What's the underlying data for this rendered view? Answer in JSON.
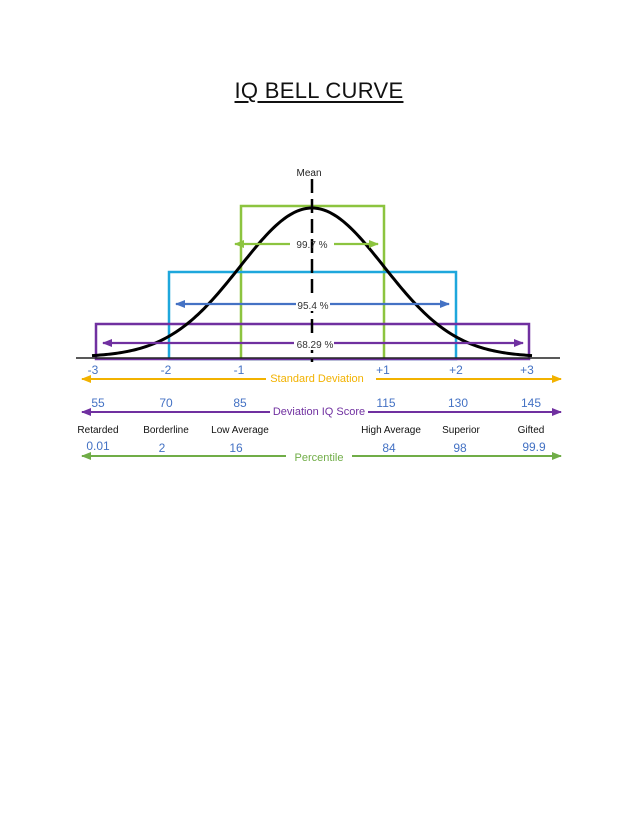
{
  "title": "IQ BELL CURVE",
  "mean_label": "Mean",
  "coverage": {
    "inner": "99.7 %",
    "middle": "95.4 %",
    "outer": "68.29 %"
  },
  "sd": {
    "caption": "Standard Deviation",
    "labels": [
      "-3",
      "-2",
      "-1",
      "+1",
      "+2",
      "+3"
    ]
  },
  "iq": {
    "caption": "Deviation IQ Score",
    "labels": [
      "55",
      "70",
      "85",
      "115",
      "130",
      "145"
    ]
  },
  "classes": {
    "labels": [
      "Retarded",
      "Borderline",
      "Low Average",
      "High Average",
      "Superior",
      "Gifted"
    ]
  },
  "percentile": {
    "caption": "Percentile",
    "labels": [
      "0.01",
      "2",
      "16",
      "84",
      "98",
      "99.9"
    ]
  },
  "colors": {
    "green": "#8cc43f",
    "cyan": "#1ea7dc",
    "purple": "#7030a0",
    "blue_arrow": "#4472c4",
    "orange": "#f2b200",
    "label_blue": "#4472c4",
    "percentile_green": "#70ad47"
  }
}
